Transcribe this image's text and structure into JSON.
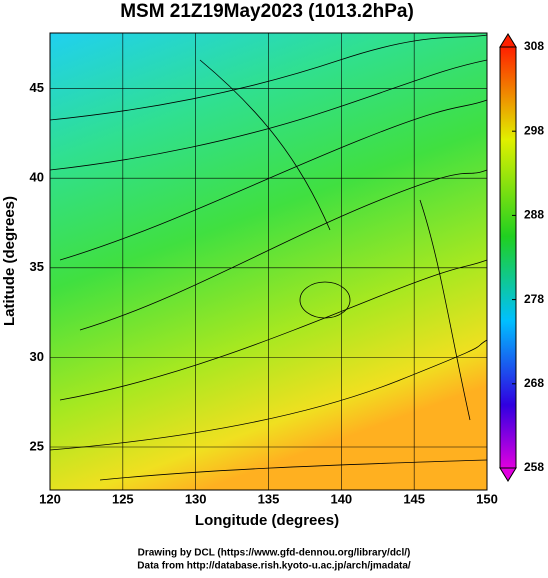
{
  "chart_data": {
    "type": "map",
    "title": "MSM 21Z19May2023 (1013.2hPa)",
    "xlabel": "Longitude (degrees)",
    "ylabel": "Latitude  (degrees)",
    "xlim": [
      120,
      150
    ],
    "xticks": [
      120,
      125,
      130,
      135,
      140,
      145,
      150
    ],
    "ylim": [
      22.6,
      48.1
    ],
    "yticks": [
      25,
      30,
      35,
      40,
      45
    ],
    "colorbar": {
      "lim": [
        258,
        308
      ],
      "ticks": [
        258,
        268,
        278,
        288,
        298,
        308
      ]
    }
  },
  "credits": [
    "Drawing by DCL (https://www.gfd-dennou.org/library/dcl/)",
    "Data from http://database.rish.kyoto-u.ac.jp/arch/jmadata/"
  ]
}
